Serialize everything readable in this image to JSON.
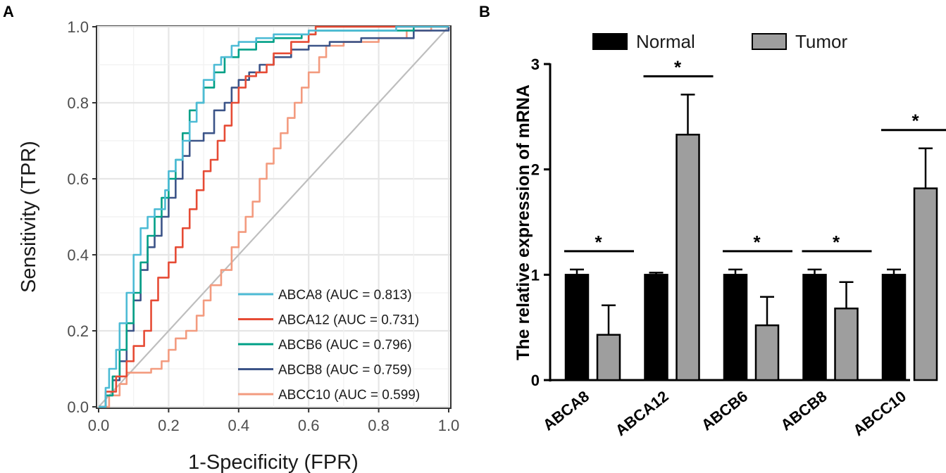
{
  "chart_data": [
    {
      "panel_label": "A",
      "type": "line",
      "title": "",
      "xlabel": "1-Specificity (FPR)",
      "ylabel": "Sensitivity (TPR)",
      "xlim": [
        0,
        1
      ],
      "ylim": [
        0,
        1
      ],
      "xticks": [
        "0.0",
        "0.2",
        "0.4",
        "0.6",
        "0.8",
        "1.0"
      ],
      "yticks": [
        "0.0",
        "0.2",
        "0.4",
        "0.6",
        "0.8",
        "1.0"
      ],
      "grid": true,
      "legend_position": "bottom-right",
      "series": [
        {
          "name": "ABCA8 (AUC = 0.813)",
          "color": "#4DBBD5",
          "points": [
            [
              0,
              0
            ],
            [
              0.02,
              0.05
            ],
            [
              0.03,
              0.1
            ],
            [
              0.05,
              0.15
            ],
            [
              0.06,
              0.22
            ],
            [
              0.08,
              0.3
            ],
            [
              0.1,
              0.4
            ],
            [
              0.12,
              0.47
            ],
            [
              0.14,
              0.5
            ],
            [
              0.16,
              0.52
            ],
            [
              0.19,
              0.57
            ],
            [
              0.2,
              0.62
            ],
            [
              0.22,
              0.65
            ],
            [
              0.24,
              0.7
            ],
            [
              0.26,
              0.75
            ],
            [
              0.28,
              0.8
            ],
            [
              0.3,
              0.86
            ],
            [
              0.33,
              0.9
            ],
            [
              0.35,
              0.92
            ],
            [
              0.38,
              0.95
            ],
            [
              0.4,
              0.96
            ],
            [
              0.45,
              0.97
            ],
            [
              0.5,
              0.98
            ],
            [
              0.6,
              0.99
            ],
            [
              0.7,
              0.99
            ],
            [
              0.85,
              1
            ],
            [
              0.92,
              1
            ],
            [
              1,
              1
            ]
          ]
        },
        {
          "name": "ABCA12 (AUC = 0.731)",
          "color": "#E64B35",
          "points": [
            [
              0,
              0
            ],
            [
              0.02,
              0.04
            ],
            [
              0.05,
              0.08
            ],
            [
              0.08,
              0.12
            ],
            [
              0.1,
              0.16
            ],
            [
              0.13,
              0.2
            ],
            [
              0.15,
              0.28
            ],
            [
              0.17,
              0.34
            ],
            [
              0.2,
              0.38
            ],
            [
              0.22,
              0.42
            ],
            [
              0.24,
              0.47
            ],
            [
              0.26,
              0.52
            ],
            [
              0.28,
              0.57
            ],
            [
              0.3,
              0.62
            ],
            [
              0.32,
              0.65
            ],
            [
              0.34,
              0.7
            ],
            [
              0.36,
              0.74
            ],
            [
              0.38,
              0.8
            ],
            [
              0.4,
              0.84
            ],
            [
              0.42,
              0.87
            ],
            [
              0.45,
              0.88
            ],
            [
              0.48,
              0.9
            ],
            [
              0.5,
              0.93
            ],
            [
              0.55,
              0.96
            ],
            [
              0.6,
              0.98
            ],
            [
              0.62,
              1
            ],
            [
              0.75,
              1
            ],
            [
              1,
              1
            ]
          ]
        },
        {
          "name": "ABCB6 (AUC = 0.796)",
          "color": "#00A087",
          "points": [
            [
              0,
              0
            ],
            [
              0.02,
              0.03
            ],
            [
              0.04,
              0.08
            ],
            [
              0.06,
              0.15
            ],
            [
              0.08,
              0.22
            ],
            [
              0.1,
              0.3
            ],
            [
              0.12,
              0.38
            ],
            [
              0.14,
              0.45
            ],
            [
              0.16,
              0.5
            ],
            [
              0.18,
              0.55
            ],
            [
              0.2,
              0.6
            ],
            [
              0.22,
              0.65
            ],
            [
              0.24,
              0.72
            ],
            [
              0.26,
              0.78
            ],
            [
              0.28,
              0.8
            ],
            [
              0.3,
              0.84
            ],
            [
              0.33,
              0.88
            ],
            [
              0.36,
              0.92
            ],
            [
              0.4,
              0.94
            ],
            [
              0.45,
              0.96
            ],
            [
              0.5,
              0.97
            ],
            [
              0.58,
              0.98
            ],
            [
              0.62,
              0.99
            ],
            [
              0.8,
              0.99
            ],
            [
              0.9,
              1
            ],
            [
              1,
              1
            ]
          ]
        },
        {
          "name": "ABCB8 (AUC = 0.759)",
          "color": "#3C5488",
          "points": [
            [
              0,
              0
            ],
            [
              0.02,
              0.03
            ],
            [
              0.04,
              0.07
            ],
            [
              0.06,
              0.12
            ],
            [
              0.08,
              0.2
            ],
            [
              0.1,
              0.28
            ],
            [
              0.12,
              0.36
            ],
            [
              0.14,
              0.42
            ],
            [
              0.16,
              0.45
            ],
            [
              0.18,
              0.5
            ],
            [
              0.2,
              0.55
            ],
            [
              0.22,
              0.6
            ],
            [
              0.24,
              0.66
            ],
            [
              0.26,
              0.7
            ],
            [
              0.3,
              0.72
            ],
            [
              0.33,
              0.78
            ],
            [
              0.36,
              0.8
            ],
            [
              0.38,
              0.84
            ],
            [
              0.4,
              0.86
            ],
            [
              0.43,
              0.88
            ],
            [
              0.46,
              0.9
            ],
            [
              0.5,
              0.92
            ],
            [
              0.55,
              0.94
            ],
            [
              0.6,
              0.95
            ],
            [
              0.66,
              0.96
            ],
            [
              0.75,
              0.97
            ],
            [
              0.85,
              0.97
            ],
            [
              0.9,
              0.99
            ],
            [
              1,
              1
            ]
          ]
        },
        {
          "name": "ABCC10 (AUC = 0.599)",
          "color": "#F39B7F",
          "points": [
            [
              0,
              0
            ],
            [
              0.03,
              0.03
            ],
            [
              0.06,
              0.06
            ],
            [
              0.08,
              0.09
            ],
            [
              0.12,
              0.09
            ],
            [
              0.15,
              0.1
            ],
            [
              0.18,
              0.12
            ],
            [
              0.2,
              0.15
            ],
            [
              0.22,
              0.18
            ],
            [
              0.25,
              0.2
            ],
            [
              0.28,
              0.24
            ],
            [
              0.3,
              0.28
            ],
            [
              0.32,
              0.32
            ],
            [
              0.35,
              0.36
            ],
            [
              0.38,
              0.42
            ],
            [
              0.4,
              0.46
            ],
            [
              0.42,
              0.5
            ],
            [
              0.44,
              0.54
            ],
            [
              0.46,
              0.6
            ],
            [
              0.48,
              0.64
            ],
            [
              0.5,
              0.68
            ],
            [
              0.52,
              0.72
            ],
            [
              0.54,
              0.76
            ],
            [
              0.56,
              0.8
            ],
            [
              0.58,
              0.84
            ],
            [
              0.6,
              0.88
            ],
            [
              0.63,
              0.92
            ],
            [
              0.65,
              0.95
            ],
            [
              0.7,
              0.96
            ],
            [
              0.8,
              0.97
            ],
            [
              0.88,
              0.99
            ],
            [
              0.95,
              1
            ],
            [
              1,
              1
            ]
          ]
        },
        {
          "name": "reference",
          "color": "#BEBEBE",
          "points": [
            [
              0,
              0
            ],
            [
              1,
              1
            ]
          ]
        }
      ]
    },
    {
      "panel_label": "B",
      "type": "bar",
      "title": "",
      "xlabel": "",
      "ylabel": "The relative expression of mRNA",
      "ylim": [
        0,
        3
      ],
      "yticks": [
        "0",
        "1",
        "2",
        "3"
      ],
      "categories": [
        "ABCA8",
        "ABCA12",
        "ABCB6",
        "ABCB8",
        "ABCC10"
      ],
      "legend_position": "top",
      "series": [
        {
          "name": "Normal",
          "color": "#000000",
          "values": [
            1.0,
            1.0,
            1.0,
            1.0,
            1.0
          ],
          "errors": [
            0.05,
            0.02,
            0.05,
            0.05,
            0.05
          ]
        },
        {
          "name": "Tumor",
          "color": "#9E9E9E",
          "values": [
            0.43,
            2.33,
            0.52,
            0.68,
            1.82
          ],
          "errors": [
            0.28,
            0.38,
            0.27,
            0.25,
            0.38
          ]
        }
      ],
      "significance": [
        "*",
        "*",
        "*",
        "*",
        "*"
      ]
    }
  ]
}
